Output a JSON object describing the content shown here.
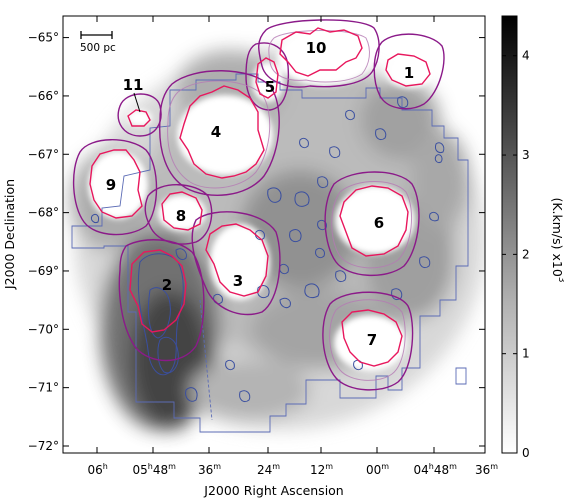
{
  "figure": {
    "xlabel": "J2000 Right Ascension",
    "ylabel": "J2000 Declination",
    "scalebar_label": "500 pc",
    "y_ticks": [
      {
        "label": "−65°",
        "dec": -65
      },
      {
        "label": "−66°",
        "dec": -66
      },
      {
        "label": "−67°",
        "dec": -67
      },
      {
        "label": "−68°",
        "dec": -68
      },
      {
        "label": "−69°",
        "dec": -69
      },
      {
        "label": "−70°",
        "dec": -70
      },
      {
        "label": "−71°",
        "dec": -71
      },
      {
        "label": "−72°",
        "dec": -72
      }
    ],
    "x_ticks": [
      {
        "hours": "06",
        "minutes": ""
      },
      {
        "hours": "05",
        "minutes": "48"
      },
      {
        "hours": "",
        "minutes": "36"
      },
      {
        "hours": "",
        "minutes": "24"
      },
      {
        "hours": "",
        "minutes": "12"
      },
      {
        "hours": "",
        "minutes": "00"
      },
      {
        "hours": "04",
        "minutes": "48"
      },
      {
        "hours": "",
        "minutes": "36"
      }
    ],
    "regions": [
      "1",
      "2",
      "3",
      "4",
      "5",
      "6",
      "7",
      "8",
      "9",
      "10",
      "11"
    ],
    "colorbar": {
      "ticks": [
        "0",
        "1",
        "2",
        "3",
        "4"
      ],
      "label": "(K.km/s)  x10",
      "exponent": "3",
      "range": [
        0,
        4.4
      ],
      "gradient": [
        "#ffffff",
        "#000000"
      ]
    },
    "colors": {
      "supershell_contour": "#e8175d",
      "outer_boundary": "#8b1a89",
      "co_contours": "#3a4fa0",
      "survey_outline": "#5b6bb5"
    }
  }
}
